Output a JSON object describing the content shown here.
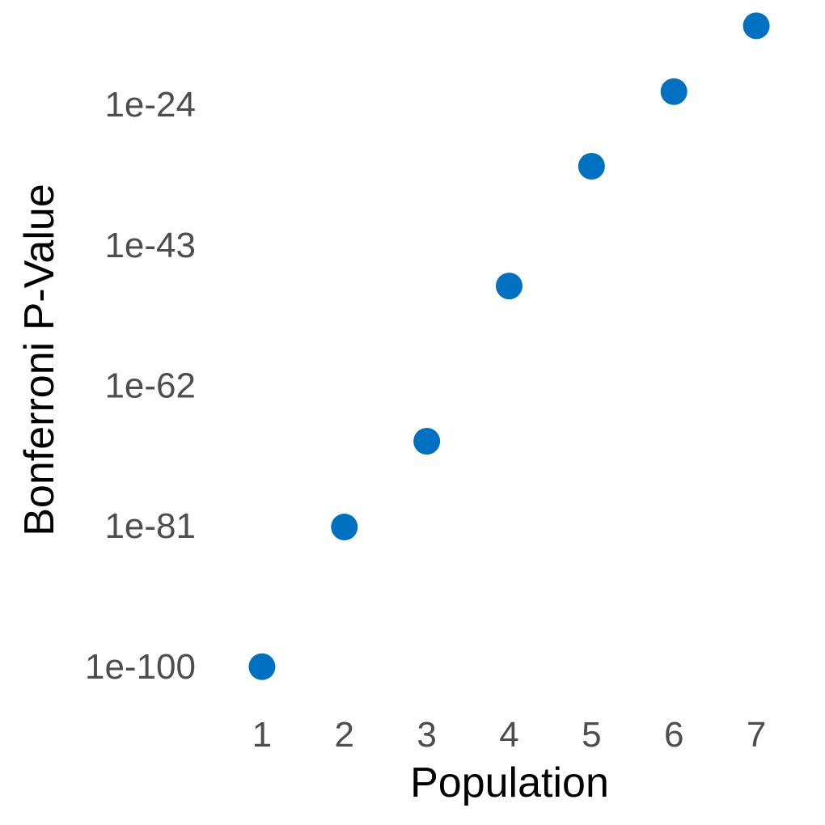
{
  "chart_data": {
    "type": "scatter",
    "title": "",
    "xlabel": "Population",
    "ylabel": "Bonferroni P-Value",
    "y_scale": "log10",
    "x_ticks": [
      1,
      2,
      3,
      4,
      5,
      6,
      7
    ],
    "y_ticks": [
      {
        "label": "1e-100",
        "log10": -100
      },
      {
        "label": "1e-81",
        "log10": -81
      },
      {
        "label": "1e-62",
        "log10": -62
      },
      {
        "label": "1e-43",
        "log10": -43
      },
      {
        "label": "1e-24",
        "log10": -24
      }
    ],
    "xlim": [
      0.5,
      7.5
    ],
    "ylim_log10": [
      -105,
      -12
    ],
    "x": [
      1,
      2,
      3,
      4,
      5,
      6,
      7
    ],
    "y_log10": [
      -100,
      -81.1,
      -69.5,
      -48.5,
      -32.3,
      -22.2,
      -13.3
    ],
    "point_color": "#0070C0",
    "grid": false,
    "legend": "none"
  }
}
